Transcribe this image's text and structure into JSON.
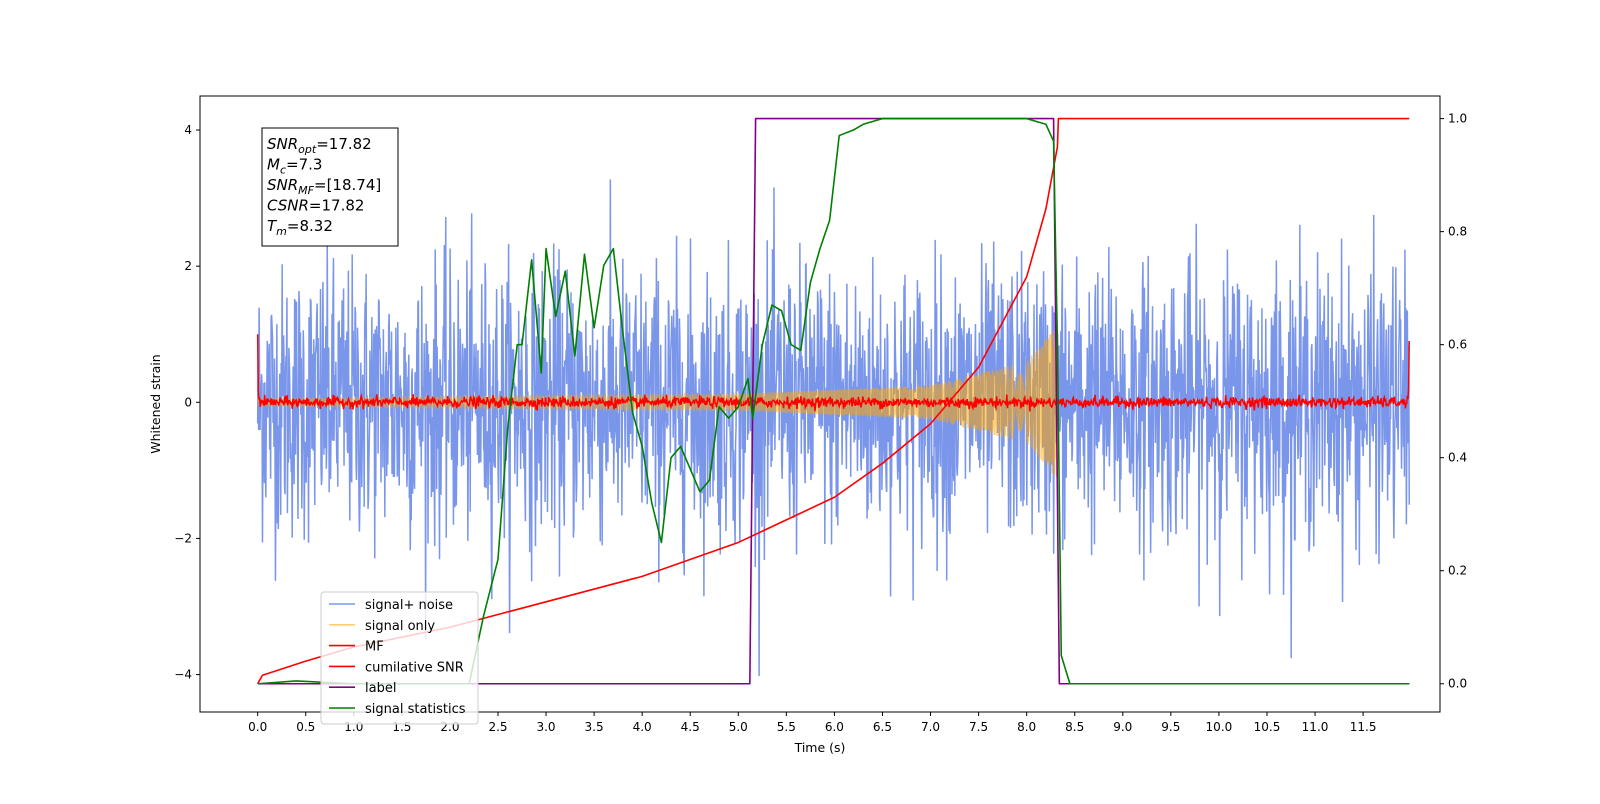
{
  "chart_data": {
    "type": "line",
    "title": "",
    "xlabel": "Time (s)",
    "ylabel": "Whitened strain",
    "xlim": [
      -0.6,
      12.3
    ],
    "ylim": [
      -4.55,
      4.5
    ],
    "ylim_right": [
      -0.05,
      1.04
    ],
    "xticks": [
      "0.0",
      "0.5",
      "1.0",
      "1.5",
      "2.0",
      "2.5",
      "3.0",
      "3.5",
      "4.0",
      "4.5",
      "5.0",
      "5.5",
      "6.0",
      "6.5",
      "7.0",
      "7.5",
      "8.0",
      "8.5",
      "9.0",
      "9.5",
      "10.0",
      "10.5",
      "11.0",
      "11.5"
    ],
    "yticks_left": [
      "−4",
      "−2",
      "0",
      "2",
      "4"
    ],
    "yticks_right": [
      "0.0",
      "0.2",
      "0.4",
      "0.6",
      "0.8",
      "1.0"
    ],
    "grid": false,
    "legend_position": "lower-left",
    "annotation": {
      "lines": [
        {
          "var": "SNR",
          "sub": "opt",
          "value": "=17.82"
        },
        {
          "var": "M",
          "sub": "c",
          "value": "=7.3"
        },
        {
          "var": "SNR",
          "sub": "MF",
          "value": "=[18.74]"
        },
        {
          "var": "CSNR",
          "sub": "",
          "value": "=17.82"
        },
        {
          "var": "T",
          "sub": "m",
          "value": "=8.32"
        }
      ]
    },
    "series": [
      {
        "name": "signal+ noise",
        "color": "#4169e1",
        "axis": "left",
        "kind": "noise",
        "std": 1.0,
        "t_start": 0.0,
        "t_end": 11.98,
        "value_range": [
          -4.1,
          4.05
        ]
      },
      {
        "name": "signal only",
        "color": "#ffa500",
        "axis": "left",
        "kind": "chirp",
        "t_start": 0.0,
        "t_merge": 8.32,
        "envelope_at": [
          [
            0.0,
            0.05
          ],
          [
            5.0,
            0.12
          ],
          [
            7.0,
            0.25
          ],
          [
            8.0,
            0.6
          ],
          [
            8.3,
            1.1
          ]
        ]
      },
      {
        "name": "MF",
        "color": "#ff0000",
        "axis": "left",
        "kind": "noise_small",
        "t_start": 0.0,
        "t_end": 11.98,
        "start_value": 1.0,
        "end_value": 0.9
      },
      {
        "name": "cumilative SNR",
        "color": "#ff0000",
        "axis": "right",
        "points": [
          [
            0.0,
            0.0
          ],
          [
            0.05,
            0.015
          ],
          [
            0.5,
            0.04
          ],
          [
            1.0,
            0.065
          ],
          [
            2.0,
            0.1
          ],
          [
            3.0,
            0.145
          ],
          [
            4.0,
            0.19
          ],
          [
            5.0,
            0.25
          ],
          [
            6.0,
            0.33
          ],
          [
            6.5,
            0.39
          ],
          [
            7.0,
            0.46
          ],
          [
            7.5,
            0.56
          ],
          [
            8.0,
            0.72
          ],
          [
            8.2,
            0.84
          ],
          [
            8.32,
            0.95
          ],
          [
            8.33,
            1.0
          ],
          [
            11.98,
            1.0
          ]
        ]
      },
      {
        "name": "label",
        "color": "#800080",
        "axis": "right",
        "points": [
          [
            0.0,
            0.0
          ],
          [
            5.12,
            0.0
          ],
          [
            5.18,
            1.0
          ],
          [
            8.28,
            1.0
          ],
          [
            8.34,
            0.0
          ],
          [
            11.98,
            0.0
          ]
        ]
      },
      {
        "name": "signal statistics",
        "color": "#008000",
        "axis": "right",
        "points": [
          [
            0.0,
            0.0
          ],
          [
            0.4,
            0.005
          ],
          [
            1.0,
            0.0
          ],
          [
            1.8,
            0.0
          ],
          [
            2.2,
            0.0
          ],
          [
            2.35,
            0.12
          ],
          [
            2.5,
            0.22
          ],
          [
            2.6,
            0.45
          ],
          [
            2.7,
            0.6
          ],
          [
            2.75,
            0.6
          ],
          [
            2.85,
            0.75
          ],
          [
            2.95,
            0.55
          ],
          [
            3.0,
            0.77
          ],
          [
            3.1,
            0.65
          ],
          [
            3.2,
            0.73
          ],
          [
            3.3,
            0.58
          ],
          [
            3.4,
            0.76
          ],
          [
            3.5,
            0.63
          ],
          [
            3.6,
            0.74
          ],
          [
            3.7,
            0.77
          ],
          [
            3.8,
            0.62
          ],
          [
            3.9,
            0.48
          ],
          [
            4.0,
            0.42
          ],
          [
            4.1,
            0.32
          ],
          [
            4.2,
            0.25
          ],
          [
            4.3,
            0.4
          ],
          [
            4.4,
            0.42
          ],
          [
            4.5,
            0.38
          ],
          [
            4.6,
            0.34
          ],
          [
            4.7,
            0.36
          ],
          [
            4.8,
            0.49
          ],
          [
            4.9,
            0.47
          ],
          [
            5.0,
            0.49
          ],
          [
            5.1,
            0.54
          ],
          [
            5.15,
            0.47
          ],
          [
            5.25,
            0.6
          ],
          [
            5.35,
            0.67
          ],
          [
            5.45,
            0.66
          ],
          [
            5.55,
            0.6
          ],
          [
            5.65,
            0.59
          ],
          [
            5.75,
            0.71
          ],
          [
            5.85,
            0.77
          ],
          [
            5.95,
            0.82
          ],
          [
            6.05,
            0.97
          ],
          [
            6.2,
            0.98
          ],
          [
            6.3,
            0.99
          ],
          [
            6.5,
            1.0
          ],
          [
            7.0,
            1.0
          ],
          [
            7.5,
            1.0
          ],
          [
            8.0,
            1.0
          ],
          [
            8.2,
            0.99
          ],
          [
            8.28,
            0.96
          ],
          [
            8.32,
            0.6
          ],
          [
            8.36,
            0.05
          ],
          [
            8.45,
            0.0
          ],
          [
            11.98,
            0.0
          ]
        ]
      }
    ]
  }
}
